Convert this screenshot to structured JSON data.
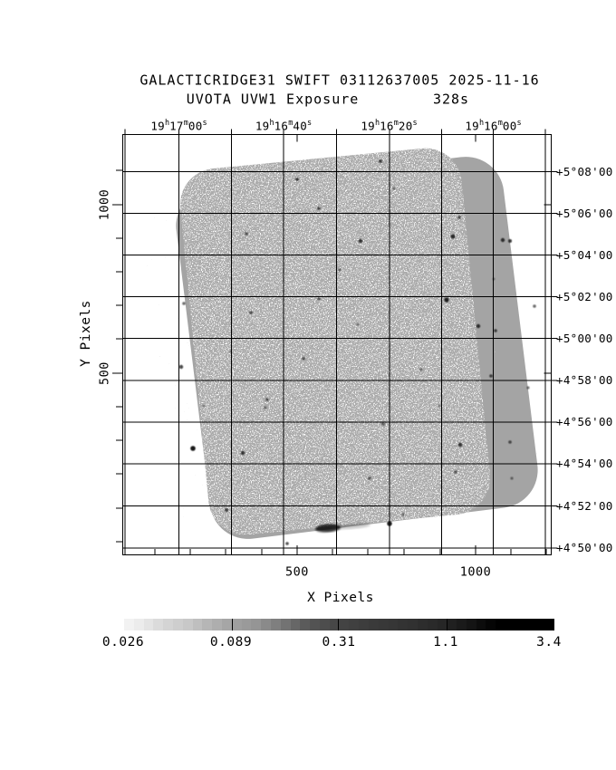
{
  "title": {
    "line1": "GALACTICRIDGE31 SWIFT 03112637005 2025-11-16",
    "line2_left": "UVOTA UVW1 Exposure",
    "line2_right": "328s"
  },
  "axes": {
    "x_title": "X Pixels",
    "y_title": "Y Pixels",
    "x_tick_labels": [
      "500",
      "1000"
    ],
    "y_tick_labels": [
      "1000",
      "500"
    ],
    "ra_tick_labels": [
      "19h17m00s",
      "19h16m40s",
      "19h16m20s",
      "19h16m00s"
    ],
    "dec_tick_labels": [
      "+5°08'00",
      "+5°06'00",
      "+5°04'00",
      "+5°02'00",
      "+5°00'00",
      "+4°58'00",
      "+4°56'00",
      "+4°54'00",
      "+4°52'00",
      "+4°50'00"
    ]
  },
  "colorbar": {
    "labels": [
      "0.026",
      "0.089",
      "0.31",
      "1.1",
      "3.4"
    ]
  },
  "colors": {
    "background": "#ffffff",
    "foreground": "#000000",
    "footprint_main_gray": "#acacac",
    "footprint_outer_gray": "#a4a4a4"
  },
  "chart_data": {
    "type": "heatmap",
    "title": "GALACTICRIDGE31 SWIFT 03112637005 2025-11-16",
    "subtitle": "UVOTA UVW1 Exposure 328s",
    "xlabel": "X Pixels",
    "ylabel": "Y Pixels",
    "x_ticks": [
      500,
      1000
    ],
    "y_ticks": [
      500,
      1000
    ],
    "xlim": [
      0,
      1200
    ],
    "ylim": [
      0,
      1250
    ],
    "ra_ticks": [
      "19h17m00s",
      "19h16m40s",
      "19h16m20s",
      "19h16m00s"
    ],
    "dec_ticks": [
      "+5°08'00",
      "+5°06'00",
      "+5°04'00",
      "+5°02'00",
      "+5°00'00",
      "+4°58'00",
      "+4°56'00",
      "+4°54'00",
      "+4°52'00",
      "+4°50'00"
    ],
    "grid": true,
    "colorbar_values": [
      0.026,
      0.089,
      0.31,
      1.1,
      3.4
    ],
    "colorbar_scale": "log",
    "colorbar_orientation": "horizontal",
    "image_content": "Rotated rounded-square UVOT detector exposure footprint: speckled light-gray main region, slightly darker smooth band along right/top/bottom edges, sparse faint speckle halo offset to the lower-left, scattered small dark spots and a dark smudge near the bottom center"
  }
}
